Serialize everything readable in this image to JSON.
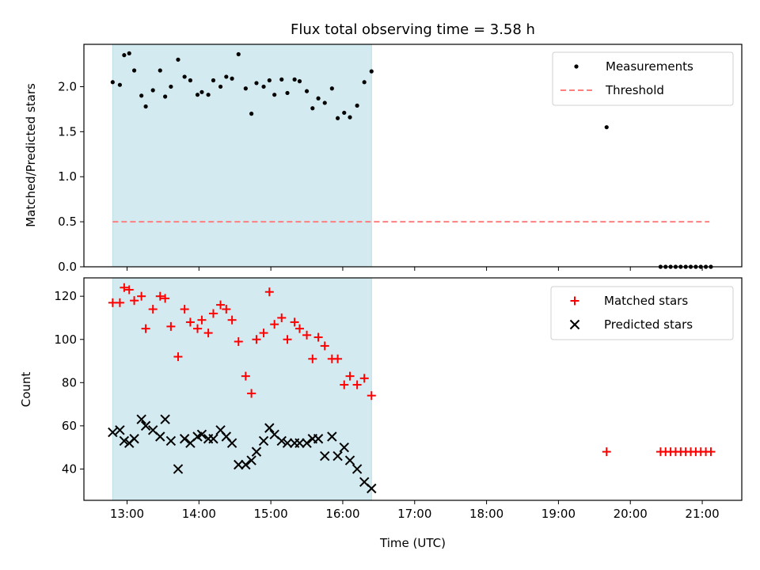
{
  "chart_data": [
    {
      "type": "scatter",
      "title": "Flux total observing time = 3.58 h",
      "xlabel": "",
      "ylabel": "Matched/Predicted stars",
      "xlim": [
        12.4,
        21.55
      ],
      "ylim": [
        0.0,
        2.47
      ],
      "yticks": [
        0.0,
        0.5,
        1.0,
        1.5,
        2.0
      ],
      "ytick_labels": [
        "0.0",
        "0.5",
        "1.0",
        "1.5",
        "2.0"
      ],
      "xticks": [
        13,
        14,
        15,
        16,
        17,
        18,
        19,
        20,
        21
      ],
      "shaded_span": [
        12.8,
        16.4
      ],
      "shade_color": "#d3eaf0",
      "legend_position": "upper right",
      "series": [
        {
          "name": "Measurements",
          "marker": "dot",
          "color": "#000000",
          "x": [
            12.8,
            12.9,
            12.96,
            13.03,
            13.1,
            13.2,
            13.26,
            13.36,
            13.46,
            13.53,
            13.61,
            13.71,
            13.8,
            13.88,
            13.98,
            14.04,
            14.13,
            14.2,
            14.3,
            14.38,
            14.46,
            14.55,
            14.65,
            14.73,
            14.8,
            14.9,
            14.98,
            15.05,
            15.15,
            15.23,
            15.33,
            15.4,
            15.5,
            15.58,
            15.66,
            15.75,
            15.85,
            15.93,
            16.02,
            16.1,
            16.2,
            16.3,
            16.4,
            19.67,
            20.42,
            20.49,
            20.56,
            20.63,
            20.7,
            20.77,
            20.84,
            20.91,
            20.98,
            21.05,
            21.12
          ],
          "y": [
            2.05,
            2.02,
            2.35,
            2.37,
            2.18,
            1.9,
            1.78,
            1.96,
            2.18,
            1.89,
            2.0,
            2.3,
            2.11,
            2.07,
            1.91,
            1.94,
            1.91,
            2.07,
            2.0,
            2.11,
            2.09,
            2.36,
            1.98,
            1.7,
            2.04,
            2.0,
            2.07,
            1.91,
            2.08,
            1.93,
            2.08,
            2.06,
            1.95,
            1.76,
            1.87,
            1.82,
            1.98,
            1.65,
            1.71,
            1.66,
            1.79,
            2.05,
            2.17,
            1.55,
            0.0,
            0.0,
            0.0,
            0.0,
            0.0,
            0.0,
            0.0,
            0.0,
            0.0,
            0.0,
            0.0
          ]
        },
        {
          "name": "Threshold",
          "marker": "dashed-line",
          "color": "#ff7f7f",
          "x": [
            12.8,
            21.1
          ],
          "y": [
            0.5,
            0.5
          ]
        }
      ]
    },
    {
      "type": "scatter",
      "title": "",
      "xlabel": "Time (UTC)",
      "ylabel": "Count",
      "xlim": [
        12.4,
        21.55
      ],
      "ylim": [
        25.5,
        128.5
      ],
      "yticks": [
        40,
        60,
        80,
        100,
        120
      ],
      "ytick_labels": [
        "40",
        "60",
        "80",
        "100",
        "120"
      ],
      "xticks": [
        13,
        14,
        15,
        16,
        17,
        18,
        19,
        20,
        21
      ],
      "xtick_labels": [
        "13:00",
        "14:00",
        "15:00",
        "16:00",
        "17:00",
        "18:00",
        "19:00",
        "20:00",
        "21:00"
      ],
      "shaded_span": [
        12.8,
        16.4
      ],
      "shade_color": "#d3eaf0",
      "legend_position": "upper right",
      "series": [
        {
          "name": "Matched stars",
          "marker": "plus",
          "color": "#ff0000",
          "x": [
            12.8,
            12.9,
            12.96,
            13.03,
            13.1,
            13.2,
            13.26,
            13.36,
            13.46,
            13.53,
            13.61,
            13.71,
            13.8,
            13.88,
            13.98,
            14.04,
            14.13,
            14.2,
            14.3,
            14.38,
            14.46,
            14.55,
            14.65,
            14.73,
            14.8,
            14.9,
            14.98,
            15.05,
            15.15,
            15.23,
            15.33,
            15.4,
            15.5,
            15.58,
            15.66,
            15.75,
            15.85,
            15.93,
            16.02,
            16.1,
            16.2,
            16.3,
            16.4,
            19.67,
            20.42,
            20.49,
            20.56,
            20.63,
            20.7,
            20.77,
            20.84,
            20.91,
            20.98,
            21.05,
            21.12
          ],
          "y": [
            117,
            117,
            124,
            123,
            118,
            120,
            105,
            114,
            120,
            119,
            106,
            92,
            114,
            108,
            105,
            109,
            103,
            112,
            116,
            114,
            109,
            99,
            83,
            75,
            100,
            103,
            122,
            107,
            110,
            100,
            108,
            105,
            102,
            91,
            101,
            97,
            91,
            91,
            79,
            83,
            79,
            82,
            74,
            48,
            48,
            48,
            48,
            48,
            48,
            48,
            48,
            48,
            48,
            48,
            48
          ]
        },
        {
          "name": "Predicted stars",
          "marker": "x",
          "color": "#000000",
          "x": [
            12.8,
            12.9,
            12.96,
            13.03,
            13.1,
            13.2,
            13.26,
            13.36,
            13.46,
            13.53,
            13.61,
            13.71,
            13.8,
            13.88,
            13.98,
            14.04,
            14.13,
            14.2,
            14.3,
            14.38,
            14.46,
            14.55,
            14.65,
            14.73,
            14.8,
            14.9,
            14.98,
            15.05,
            15.15,
            15.23,
            15.33,
            15.4,
            15.5,
            15.58,
            15.66,
            15.75,
            15.85,
            15.93,
            16.02,
            16.1,
            16.2,
            16.3,
            16.4
          ],
          "y": [
            57,
            58,
            53,
            52,
            54,
            63,
            60,
            58,
            55,
            63,
            53,
            40,
            54,
            52,
            55,
            56,
            54,
            54,
            58,
            55,
            52,
            42,
            42,
            44,
            48,
            53,
            59,
            56,
            53,
            52,
            52,
            52,
            52,
            54,
            54,
            46,
            55,
            46,
            50,
            44,
            40,
            34,
            31
          ]
        }
      ]
    }
  ]
}
